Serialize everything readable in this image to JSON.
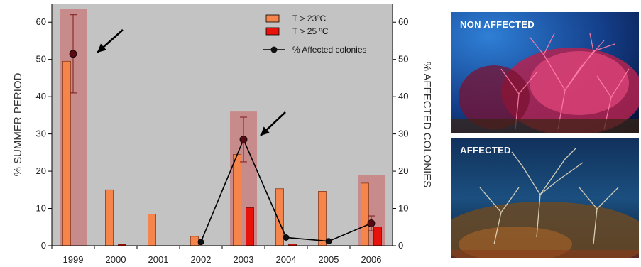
{
  "chart_data": {
    "type": "bar",
    "categories": [
      "1999",
      "2000",
      "2001",
      "2002",
      "2003",
      "2004",
      "2005",
      "2006"
    ],
    "ylabel": "% SUMMER PERIOD",
    "y2label": "% AFFECTED COLONIES",
    "ylim": [
      0,
      65
    ],
    "y2lim": [
      0,
      65
    ],
    "yticks": [
      0,
      10,
      20,
      30,
      40,
      50,
      60
    ],
    "y2ticks": [
      0,
      10,
      20,
      30,
      40,
      50,
      60
    ],
    "grid": false,
    "legend_position": "top-right",
    "series": [
      {
        "name": "T > 23ºC",
        "type": "bar",
        "color": "#f5854a",
        "values": [
          49.5,
          15.0,
          8.5,
          2.5,
          24.5,
          15.3,
          14.6,
          16.8
        ]
      },
      {
        "name": "T > 25 ºC",
        "type": "bar",
        "color": "#e8120c",
        "values": [
          0,
          0.3,
          0,
          0,
          10.2,
          0.4,
          0,
          5.0
        ]
      },
      {
        "name": "% Affected colonies",
        "type": "line",
        "axis": "right",
        "color": "#000000",
        "values": [
          51.5,
          null,
          null,
          1.0,
          28.5,
          2.2,
          1.2,
          6.0
        ],
        "error": [
          10.5,
          null,
          null,
          null,
          6.0,
          null,
          null,
          2.0
        ]
      }
    ],
    "highlighted_years": [
      {
        "category": "1999",
        "value": 63.5
      },
      {
        "category": "2003",
        "value": 36.0
      },
      {
        "category": "2006",
        "value": 19.0
      }
    ],
    "highlight_color": "#c98585"
  },
  "images": {
    "top_label": "NON AFFECTED",
    "bottom_label": "AFFECTED"
  }
}
